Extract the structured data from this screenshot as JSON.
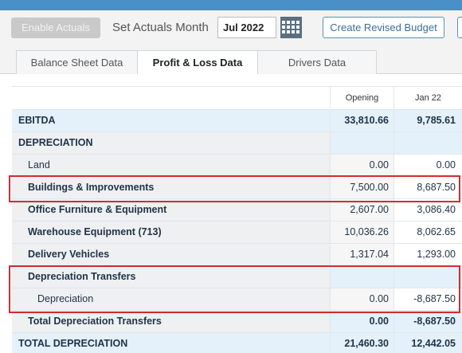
{
  "toolbar": {
    "enable_actuals_label": "Enable Actuals",
    "set_actuals_label": "Set Actuals Month",
    "month_value": "Jul 2022",
    "create_revised_label": "Create Revised Budget"
  },
  "tabs": [
    {
      "label": "Balance Sheet Data"
    },
    {
      "label": "Profit & Loss Data"
    },
    {
      "label": "Drivers Data"
    }
  ],
  "grid": {
    "headers": {
      "opening": "Opening",
      "jan": "Jan 22"
    },
    "rows": [
      {
        "label": "EBITDA",
        "opening": "33,810.66",
        "jan": "9,785.61"
      },
      {
        "label": "DEPRECIATION",
        "opening": "",
        "jan": ""
      },
      {
        "label": "Land",
        "opening": "0.00",
        "jan": "0.00"
      },
      {
        "label": "Buildings & Improvements",
        "opening": "7,500.00",
        "jan": "8,687.50"
      },
      {
        "label": "Office Furniture & Equipment",
        "opening": "2,607.00",
        "jan": "3,086.40"
      },
      {
        "label": "Warehouse Equipment (713)",
        "opening": "10,036.26",
        "jan": "8,062.65"
      },
      {
        "label": "Delivery Vehicles",
        "opening": "1,317.04",
        "jan": "1,293.00"
      },
      {
        "label": "Depreciation Transfers",
        "opening": "",
        "jan": ""
      },
      {
        "label": "Depreciation",
        "opening": "0.00",
        "jan": "-8,687.50"
      },
      {
        "label": "Total Depreciation Transfers",
        "opening": "0.00",
        "jan": "-8,687.50"
      },
      {
        "label": "TOTAL DEPRECIATION",
        "opening": "21,460.30",
        "jan": "12,442.05"
      }
    ]
  },
  "colors": {
    "highlight": "#d42b32",
    "accent": "#4a90c6"
  }
}
